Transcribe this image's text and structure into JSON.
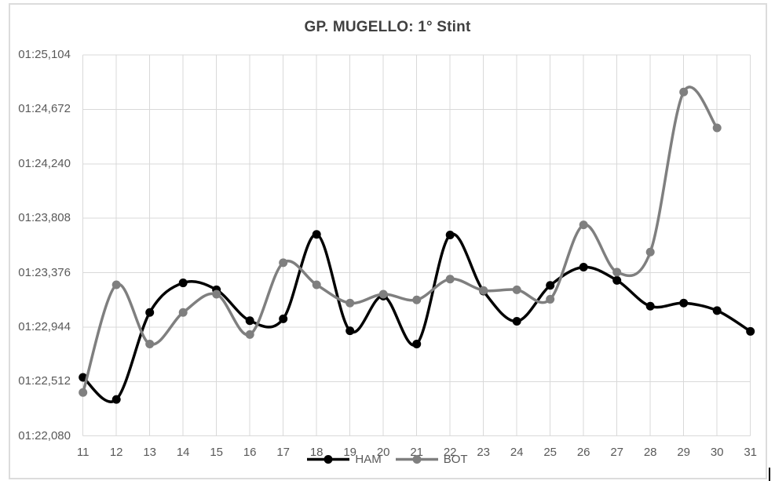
{
  "chart_data": {
    "type": "line",
    "title": "GP. MUGELLO: 1° Stint",
    "xlabel": "",
    "ylabel": "",
    "line_style": "smooth",
    "markers": true,
    "grid": true,
    "legend_position": "bottom",
    "x": [
      11,
      12,
      13,
      14,
      15,
      16,
      17,
      18,
      19,
      20,
      21,
      22,
      23,
      24,
      25,
      26,
      27,
      28,
      29,
      30,
      31
    ],
    "y_axis": {
      "tick_labels": [
        "01:22,080",
        "01:22,512",
        "01:22,944",
        "01:23,376",
        "01:23,808",
        "01:24,240",
        "01:24,672",
        "01:25,104"
      ],
      "tick_values_ms": [
        82080,
        82512,
        82944,
        83376,
        83808,
        84240,
        84672,
        85104
      ],
      "range_ms": [
        82080,
        85104
      ]
    },
    "series": [
      {
        "name": "HAM",
        "color": "#000000",
        "values_ms": [
          82545,
          82370,
          83060,
          83295,
          83240,
          82995,
          83010,
          83680,
          82915,
          83190,
          82810,
          83675,
          83230,
          82990,
          83275,
          83420,
          83315,
          83110,
          83135,
          83075,
          82910
        ],
        "lap_times": [
          "01:22,545",
          "01:22,370",
          "01:23,060",
          "01:23,295",
          "01:23,240",
          "01:22,995",
          "01:23,010",
          "01:23,680",
          "01:22,915",
          "01:23,190",
          "01:22,810",
          "01:23,675",
          "01:23,230",
          "01:22,990",
          "01:23,275",
          "01:23,420",
          "01:23,315",
          "01:23,110",
          "01:23,135",
          "01:23,075",
          "01:22,910"
        ]
      },
      {
        "name": "BOT",
        "color": "#7F7F7F",
        "values_ms": [
          82425,
          83280,
          82810,
          83060,
          83205,
          82885,
          83455,
          83280,
          83135,
          83205,
          83160,
          83325,
          83235,
          83240,
          83165,
          83755,
          83380,
          83540,
          84810,
          84525,
          null
        ],
        "lap_times": [
          "01:22,425",
          "01:23,280",
          "01:22,810",
          "01:23,060",
          "01:23,205",
          "01:22,885",
          "01:23,455",
          "01:23,280",
          "01:23,135",
          "01:23,205",
          "01:23,160",
          "01:23,325",
          "01:23,235",
          "01:23,240",
          "01:23,165",
          "01:23,755",
          "01:23,380",
          "01:23,540",
          "01:24,810",
          "01:24,525",
          null
        ]
      }
    ]
  },
  "colors": {
    "gridline": "#D9D9D9",
    "axis_text": "#595959",
    "title_text": "#404040",
    "frame_border": "#DCDCDC",
    "background": "#FFFFFF"
  }
}
